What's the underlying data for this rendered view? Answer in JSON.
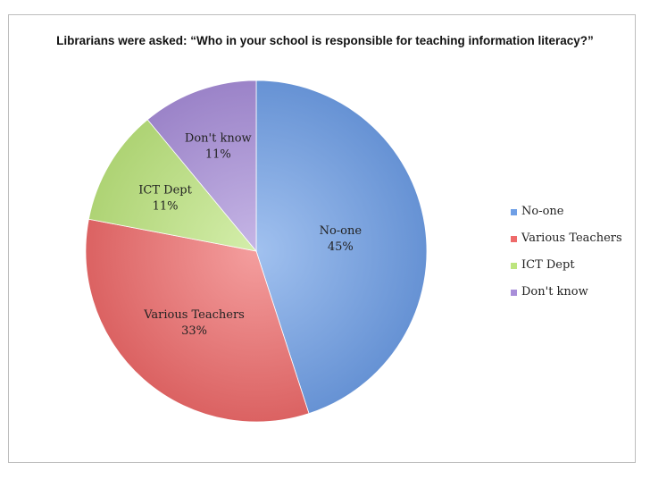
{
  "chart_data": {
    "type": "pie",
    "title": "Librarians were asked: “Who in your school is responsible for teaching information literacy?”",
    "slices": [
      {
        "label": "No-one",
        "value": 45,
        "value_label": "45%",
        "color": "#6f9fe6"
      },
      {
        "label": "Various Teachers",
        "value": 33,
        "value_label": "33%",
        "color": "#ee6a6a"
      },
      {
        "label": "ICT Dept",
        "value": 11,
        "value_label": "11%",
        "color": "#bde57e"
      },
      {
        "label": "Don't know",
        "value": 11,
        "value_label": "11%",
        "color": "#a88ed9"
      }
    ],
    "legend": {
      "position": "right",
      "entries": [
        "No-one",
        "Various Teachers",
        "ICT Dept",
        "Don't know"
      ]
    }
  }
}
